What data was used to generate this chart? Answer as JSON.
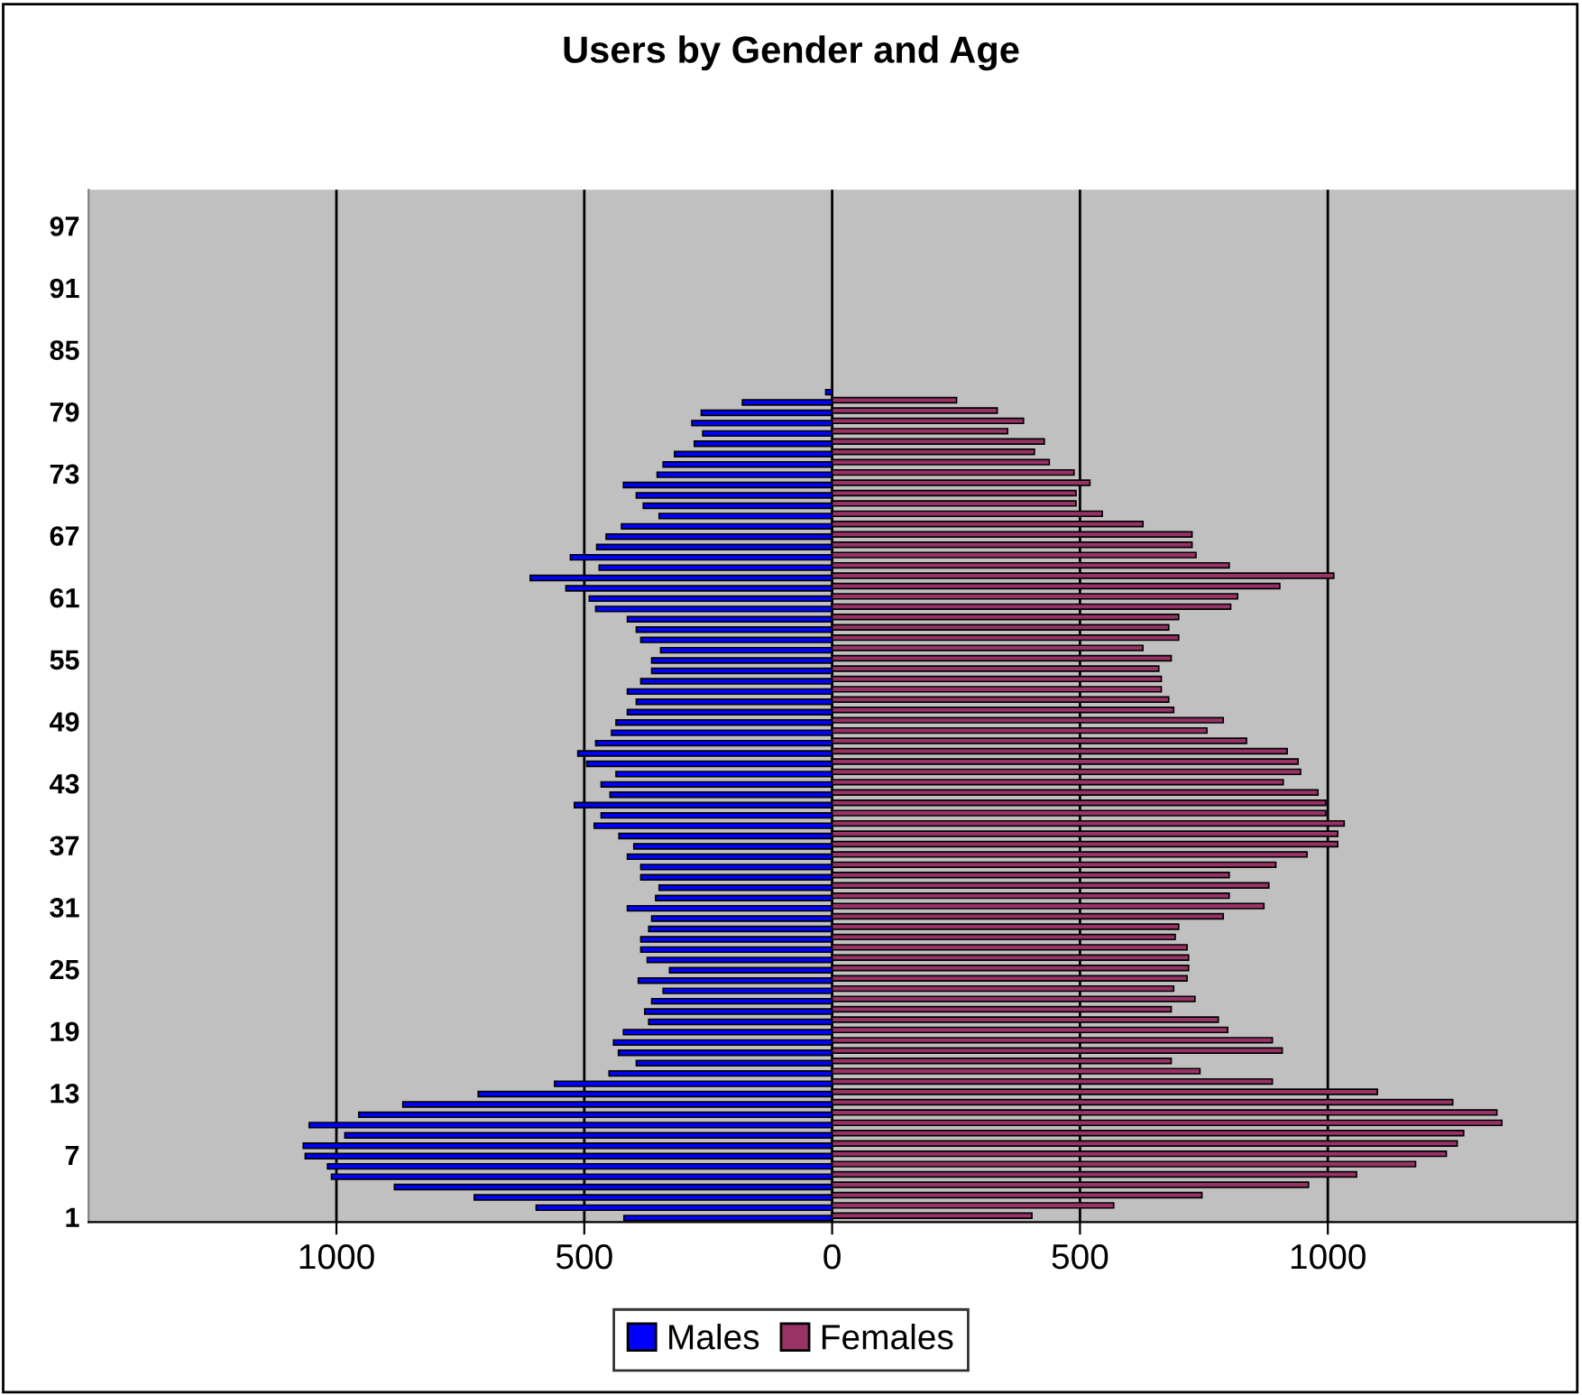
{
  "chart_data": {
    "type": "bar",
    "orientation": "horizontal",
    "title": "Users by Gender and Age",
    "categories": [
      null,
      null,
      null,
      "97",
      null,
      null,
      null,
      null,
      null,
      "91",
      null,
      null,
      null,
      null,
      null,
      "85",
      null,
      null,
      null,
      null,
      null,
      "79",
      null,
      null,
      null,
      null,
      null,
      "73",
      null,
      null,
      null,
      null,
      null,
      "67",
      null,
      null,
      null,
      null,
      null,
      "61",
      null,
      null,
      null,
      null,
      null,
      "55",
      null,
      null,
      null,
      null,
      null,
      "49",
      null,
      null,
      null,
      null,
      null,
      "43",
      null,
      null,
      null,
      null,
      null,
      "37",
      null,
      null,
      null,
      null,
      null,
      "31",
      null,
      null,
      null,
      null,
      null,
      "25",
      null,
      null,
      null,
      null,
      null,
      "19",
      null,
      null,
      null,
      null,
      null,
      "13",
      null,
      null,
      null,
      null,
      null,
      "7",
      null,
      null,
      null,
      null,
      null,
      "1"
    ],
    "series": [
      {
        "name": "Males",
        "color": "#0000ff",
        "values": [
          null,
          null,
          null,
          null,
          null,
          null,
          null,
          null,
          null,
          null,
          null,
          null,
          null,
          null,
          null,
          null,
          null,
          null,
          null,
          -13,
          -181,
          -264,
          -283,
          -261,
          -278,
          -318,
          -341,
          -353,
          -421,
          -395,
          -381,
          -349,
          -425,
          -456,
          -475,
          -528,
          -470,
          -609,
          -537,
          -490,
          -477,
          -413,
          -395,
          -386,
          -346,
          -364,
          -364,
          -386,
          -413,
          -395,
          -413,
          -436,
          -445,
          -477,
          -513,
          -495,
          -436,
          -466,
          -448,
          -520,
          -466,
          -480,
          -430,
          -400,
          -413,
          -386,
          -386,
          -349,
          -356,
          -413,
          -364,
          -370,
          -386,
          -386,
          -373,
          -328,
          -391,
          -341,
          -364,
          -378,
          -370,
          -421,
          -441,
          -431,
          -395,
          -450,
          -560,
          -714,
          -866,
          -955,
          -1055,
          -983,
          -1067,
          -1063,
          -1018,
          -1010,
          -883,
          -722,
          -597,
          -420
        ]
      },
      {
        "name": "Females",
        "color": "#993366",
        "values": [
          null,
          null,
          null,
          null,
          null,
          null,
          null,
          null,
          null,
          null,
          null,
          null,
          null,
          null,
          null,
          null,
          null,
          null,
          null,
          null,
          251,
          333,
          386,
          354,
          428,
          408,
          438,
          488,
          520,
          492,
          492,
          545,
          627,
          726,
          726,
          734,
          801,
          1012,
          903,
          818,
          804,
          699,
          679,
          699,
          627,
          684,
          659,
          664,
          664,
          679,
          689,
          789,
          756,
          836,
          918,
          940,
          945,
          910,
          980,
          996,
          996,
          1033,
          1020,
          1020,
          958,
          895,
          801,
          881,
          801,
          871,
          789,
          699,
          692,
          716,
          719,
          719,
          716,
          689,
          732,
          684,
          779,
          798,
          888,
          908,
          684,
          742,
          888,
          1100,
          1252,
          1341,
          1351,
          1274,
          1261,
          1239,
          1177,
          1058,
          961,
          746,
          568,
          403
        ]
      }
    ],
    "xlim": [
      -1500,
      1500
    ],
    "xticks": [
      {
        "value": -1000,
        "label": "1000"
      },
      {
        "value": -500,
        "label": "500"
      },
      0,
      500,
      {
        "value": 1000,
        "label": "1000"
      }
    ],
    "grid": "x",
    "legend": "bottom"
  }
}
